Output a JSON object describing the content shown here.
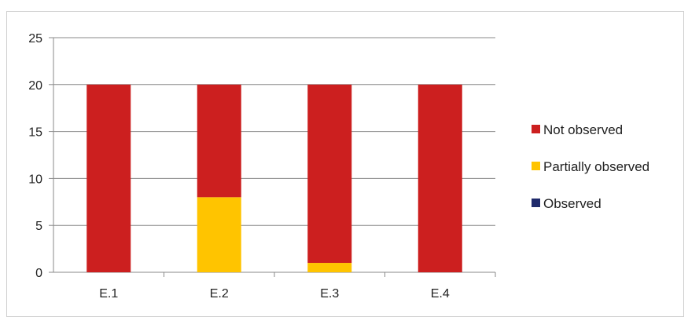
{
  "chart_data": {
    "type": "bar",
    "stacked": true,
    "categories": [
      "E.1",
      "E.2",
      "E.3",
      "E.4"
    ],
    "series": [
      {
        "name": "Observed",
        "color": "#1f2a6b",
        "values": [
          0,
          0,
          0,
          0
        ]
      },
      {
        "name": "Partially observed",
        "color": "#ffc400",
        "values": [
          0,
          8,
          1,
          0
        ]
      },
      {
        "name": "Not observed",
        "color": "#cc1f1f",
        "values": [
          20,
          12,
          19,
          20
        ]
      }
    ],
    "legend_order": [
      "Not observed",
      "Partially observed",
      "Observed"
    ],
    "legend_position": "right",
    "ylim": [
      0,
      25
    ],
    "yticks": [
      0,
      5,
      10,
      15,
      20,
      25
    ],
    "grid": true,
    "title": "",
    "xlabel": "",
    "ylabel": ""
  }
}
